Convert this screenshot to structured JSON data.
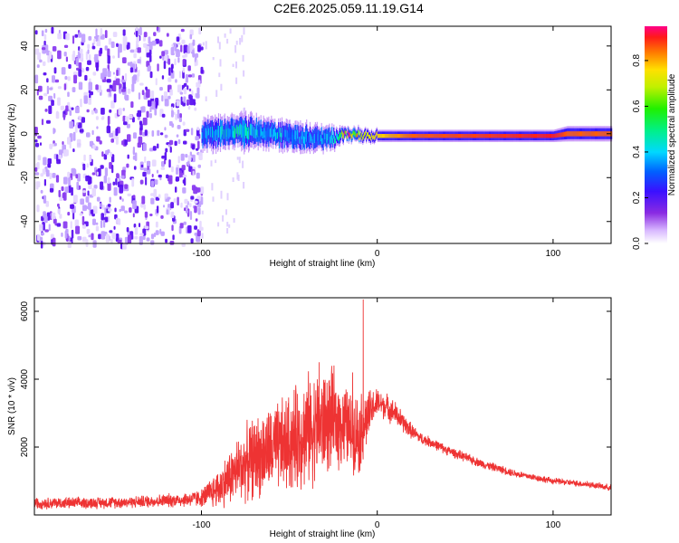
{
  "title": "C2E6.2025.059.11.19.G14",
  "chart_data": [
    {
      "type": "heatmap",
      "xlabel": "Height of straight line (km)",
      "ylabel": "Frequency (Hz)",
      "xlim": [
        -195,
        133
      ],
      "ylim": [
        -50,
        49
      ],
      "xticks": [
        -100,
        0,
        100
      ],
      "xtick_labels": [
        "-100",
        "0",
        "100"
      ],
      "yticks": [
        -40,
        -20,
        0,
        20,
        40
      ],
      "ytick_labels": [
        "-40",
        "-20",
        "0",
        "20",
        "40"
      ],
      "colorbar": {
        "label": "Normalized spectral amplitude",
        "range": [
          0.0,
          0.95
        ],
        "ticks": [
          0.0,
          0.2,
          0.4,
          0.6,
          0.8
        ],
        "tick_labels": [
          "0.0",
          "0.2",
          "0.4",
          "0.6",
          "0.8"
        ]
      },
      "features": {
        "noise_region_x": [
          -195,
          -100
        ],
        "noise_color": "#6a00e0",
        "signal_band": [
          {
            "x": -100,
            "center_hz": 0,
            "halfwidth_hz": 4,
            "amp": 0.35
          },
          {
            "x": -80,
            "center_hz": 1,
            "halfwidth_hz": 5,
            "amp": 0.45
          },
          {
            "x": -60,
            "center_hz": 0,
            "halfwidth_hz": 4,
            "amp": 0.4
          },
          {
            "x": -40,
            "center_hz": -2,
            "halfwidth_hz": 4,
            "amp": 0.35
          },
          {
            "x": -25,
            "center_hz": -2,
            "halfwidth_hz": 3,
            "amp": 0.4
          },
          {
            "x": -18,
            "center_hz": 0,
            "halfwidth_hz": 2,
            "amp": 0.95
          },
          {
            "x": -10,
            "center_hz": -1,
            "halfwidth_hz": 2,
            "amp": 0.7
          },
          {
            "x": 0,
            "center_hz": -1,
            "halfwidth_hz": 2,
            "amp": 0.8
          },
          {
            "x": 20,
            "center_hz": -1,
            "halfwidth_hz": 2,
            "amp": 0.9
          },
          {
            "x": 100,
            "center_hz": -1,
            "halfwidth_hz": 2,
            "amp": 0.95
          },
          {
            "x": 108,
            "center_hz": 0,
            "halfwidth_hz": 2.5,
            "amp": 0.9
          },
          {
            "x": 133,
            "center_hz": 0,
            "halfwidth_hz": 2.5,
            "amp": 0.9
          }
        ]
      }
    },
    {
      "type": "line",
      "xlabel": "Height of straight line (km)",
      "ylabel": "SNR (10 * v/v)",
      "xlim": [
        -195,
        133
      ],
      "ylim": [
        0,
        6400
      ],
      "xticks": [
        -100,
        0,
        100
      ],
      "xtick_labels": [
        "-100",
        "0",
        "100"
      ],
      "yticks": [
        2000,
        4000,
        6000
      ],
      "ytick_labels": [
        "2000",
        "4000",
        "6000"
      ],
      "color": "#ee3333",
      "series": [
        {
          "x": [
            -195,
            -170,
            -140,
            -110,
            -100,
            -90,
            -80,
            -70,
            -60,
            -50,
            -40,
            -35,
            -30,
            -25,
            -20,
            -15,
            -10,
            -8,
            -6,
            -4,
            -2,
            0,
            5,
            10,
            15,
            20,
            25,
            30,
            40,
            50,
            60,
            70,
            80,
            90,
            100,
            110,
            120,
            133
          ],
          "values": [
            350,
            350,
            380,
            450,
            500,
            800,
            1300,
            1700,
            1900,
            2100,
            2500,
            2600,
            2700,
            2800,
            2700,
            2500,
            2400,
            2600,
            2800,
            3000,
            3200,
            3300,
            3200,
            3000,
            2700,
            2450,
            2250,
            2150,
            1900,
            1700,
            1500,
            1350,
            1200,
            1100,
            1000,
            950,
            900,
            800
          ],
          "spread": [
            200,
            200,
            200,
            250,
            300,
            700,
            1100,
            1400,
            1500,
            1700,
            1900,
            1900,
            1800,
            1700,
            1500,
            1300,
            1400,
            1200,
            1000,
            800,
            600,
            500,
            450,
            420,
            350,
            250,
            200,
            180,
            170,
            160,
            150,
            140,
            130,
            120,
            110,
            110,
            110,
            110
          ]
        }
      ],
      "peaks": [
        {
          "x": -8,
          "value": 6350
        },
        {
          "x": -33,
          "value": 4500
        },
        {
          "x": -14,
          "value": 4200
        }
      ]
    }
  ]
}
